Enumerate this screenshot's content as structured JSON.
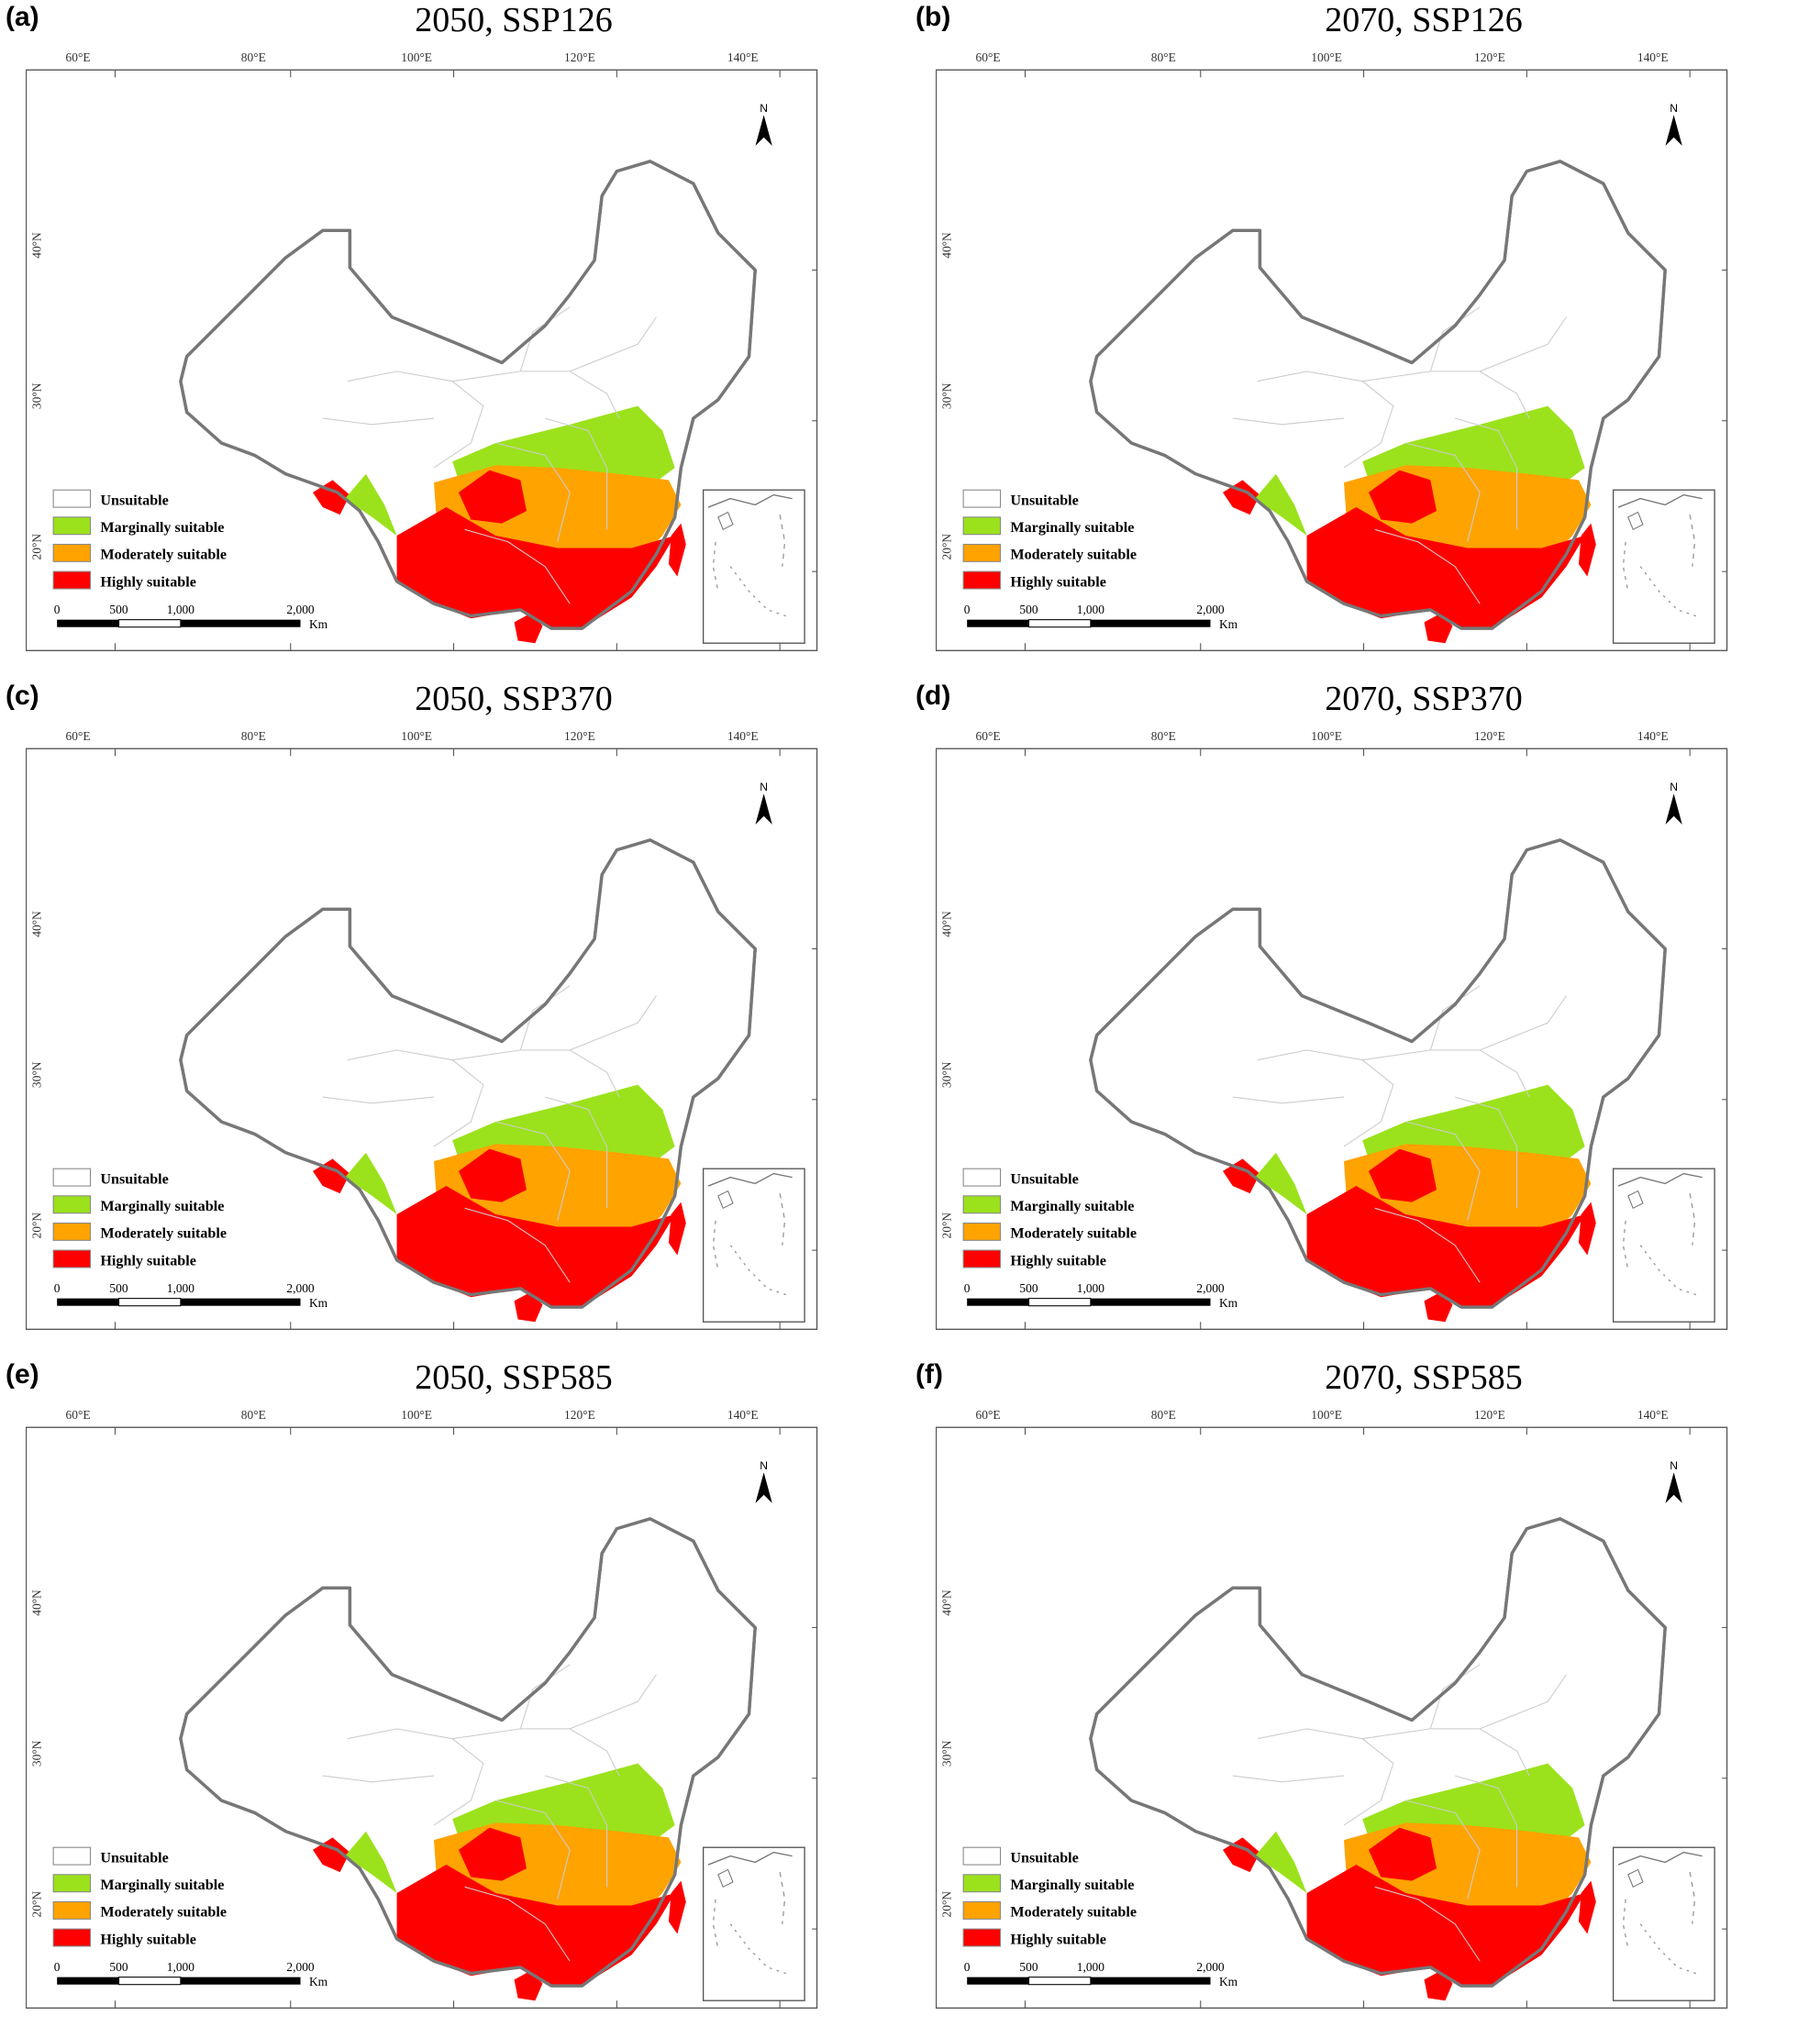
{
  "lon_labels": [
    "60°E",
    "80°E",
    "100°E",
    "120°E",
    "140°E"
  ],
  "lat_labels": [
    "40°N",
    "30°N",
    "20°N"
  ],
  "north_label": "N",
  "legend": [
    {
      "label": "Unsuitable",
      "color": "#ffffff"
    },
    {
      "label": "Marginally suitable",
      "color": "#9be21c"
    },
    {
      "label": "Moderately suitable",
      "color": "#ffa300"
    },
    {
      "label": "Highly suitable",
      "color": "#ff0000"
    }
  ],
  "scale": {
    "ticks": [
      "0",
      "500",
      "1,000",
      "2,000"
    ],
    "unit": "Km"
  },
  "panels": [
    {
      "letter": "(a)",
      "title": "2050, SSP126"
    },
    {
      "letter": "(b)",
      "title": "2070, SSP126"
    },
    {
      "letter": "(c)",
      "title": "2050, SSP370"
    },
    {
      "letter": "(d)",
      "title": "2070, SSP370"
    },
    {
      "letter": "(e)",
      "title": "2050, SSP585"
    },
    {
      "letter": "(f)",
      "title": "2070, SSP585"
    }
  ]
}
